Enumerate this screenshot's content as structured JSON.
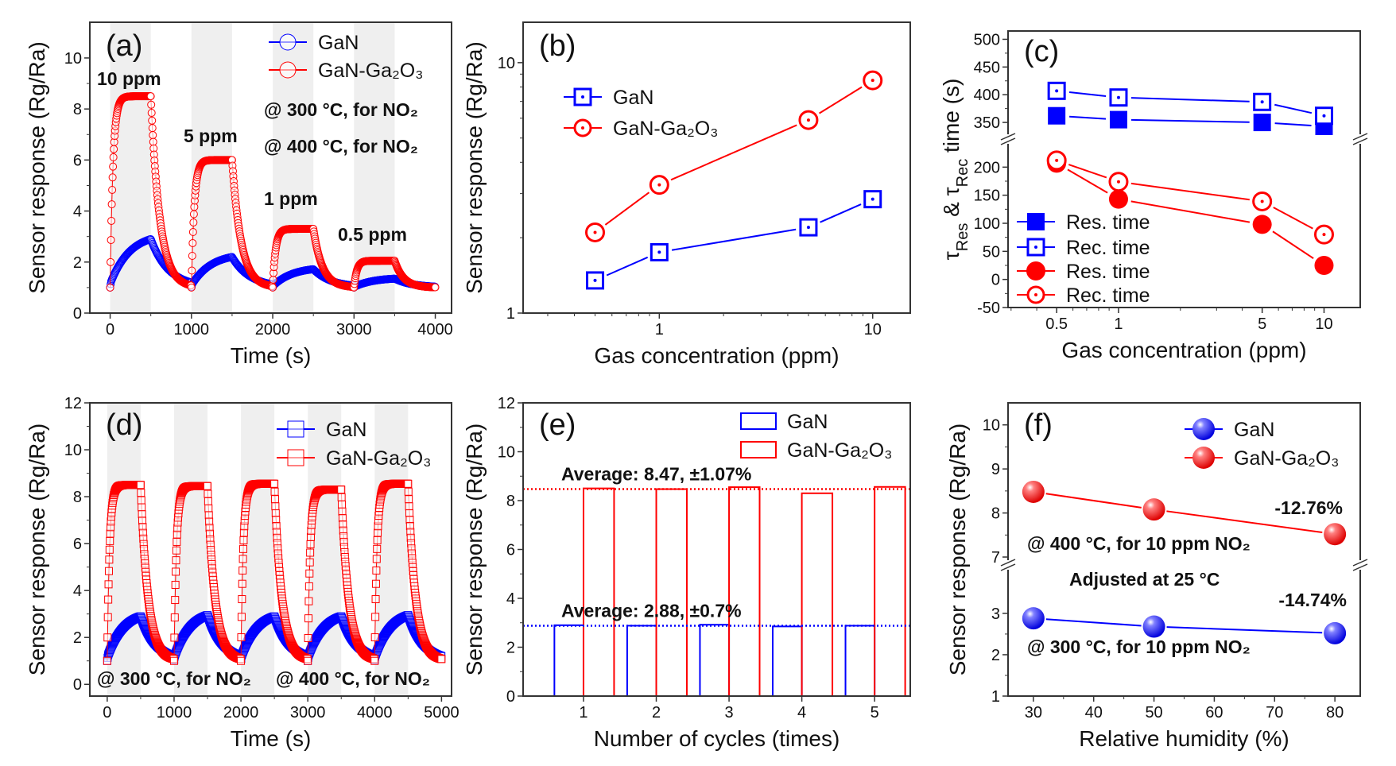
{
  "chart_data": [
    {
      "panel_label": "(a)",
      "type": "line",
      "xlabel": "Time (s)",
      "ylabel": "Sensor response (Rg/Ra)",
      "xlim": [
        -250,
        4200
      ],
      "ylim": [
        0,
        11.4
      ],
      "xticks": [
        0,
        1000,
        2000,
        3000,
        4000
      ],
      "yticks": [
        0,
        2,
        4,
        6,
        8,
        10
      ],
      "exposure_windows": [
        [
          0,
          500
        ],
        [
          1000,
          1500
        ],
        [
          2000,
          2500
        ],
        [
          3000,
          3500
        ]
      ],
      "baseline": 1,
      "series": [
        {
          "name": "GaN",
          "color": "#0000ff",
          "marker": "open-circle",
          "peaks": [
            2.9,
            2.2,
            1.72,
            1.35
          ]
        },
        {
          "name": "GaN-Ga₂O₃",
          "color": "#ff0000",
          "marker": "open-circle",
          "peaks": [
            8.5,
            6.0,
            3.3,
            2.05
          ]
        }
      ],
      "concentration_labels": [
        "10 ppm",
        "5 ppm",
        "1 ppm",
        "0.5 ppm"
      ],
      "annotations": [
        "@ 300 °C, for NO₂",
        "@ 400 °C, for NO₂"
      ],
      "legend": "top-right",
      "grid": false
    },
    {
      "panel_label": "(b)",
      "type": "line",
      "xlabel": "Gas concentration (ppm)",
      "ylabel": "Sensor response (Rg/Ra)",
      "xscale": "log",
      "yscale": "log",
      "xlim": [
        0.23,
        15
      ],
      "ylim": [
        1,
        14.5
      ],
      "xticks": [
        1,
        10
      ],
      "yticks": [
        1,
        10
      ],
      "x": [
        0.5,
        1,
        5,
        10
      ],
      "series": [
        {
          "name": "GaN",
          "color": "#0000ff",
          "marker": "open-square-dot",
          "values": [
            1.35,
            1.75,
            2.2,
            2.85
          ]
        },
        {
          "name": "GaN-Ga₂O₃",
          "color": "#ff0000",
          "marker": "open-circle-dot",
          "values": [
            2.1,
            3.25,
            5.9,
            8.5
          ]
        }
      ],
      "legend": "top-left",
      "grid": false
    },
    {
      "panel_label": "(c)",
      "type": "line",
      "xlabel": "Gas concentration (ppm)",
      "ylabel_parts": [
        "τ",
        "Res",
        " & τ",
        "Rec",
        " time (s)"
      ],
      "xscale": "log",
      "xlim": [
        0.29,
        15
      ],
      "broken_y": true,
      "ylim_lower": [
        -50,
        250
      ],
      "ylim_upper": [
        320,
        515
      ],
      "xticks": [
        0.5,
        1,
        5,
        10
      ],
      "yticks_lower": [
        -50,
        0,
        50,
        100,
        150,
        200
      ],
      "yticks_upper": [
        350,
        400,
        450,
        500
      ],
      "x": [
        0.5,
        1,
        5,
        10
      ],
      "series": [
        {
          "name": "Res. time",
          "color": "#0000ff",
          "marker": "filled-square",
          "values": [
            362,
            355,
            350,
            343
          ]
        },
        {
          "name": "Rec. time",
          "color": "#0000ff",
          "marker": "open-square-dot",
          "values": [
            407,
            395,
            387,
            362
          ]
        },
        {
          "name": "Res. time",
          "color": "#ff0000",
          "marker": "filled-circle",
          "values": [
            207,
            143,
            98,
            25
          ]
        },
        {
          "name": "Rec. time",
          "color": "#ff0000",
          "marker": "open-circle-dot",
          "values": [
            212,
            174,
            139,
            80
          ]
        }
      ],
      "legend": "bottom-left",
      "grid": false
    },
    {
      "panel_label": "(d)",
      "type": "line",
      "xlabel": "Time (s)",
      "ylabel": "Sensor response (Rg/Ra)",
      "xlim": [
        -260,
        5150
      ],
      "ylim": [
        -0.5,
        12
      ],
      "xticks": [
        0,
        1000,
        2000,
        3000,
        4000,
        5000
      ],
      "yticks": [
        0,
        2,
        4,
        6,
        8,
        10,
        12
      ],
      "exposure_windows": [
        [
          0,
          500
        ],
        [
          1000,
          1500
        ],
        [
          2000,
          2500
        ],
        [
          3000,
          3500
        ],
        [
          4000,
          4500
        ]
      ],
      "baseline": 1,
      "series": [
        {
          "name": "GaN",
          "color": "#0000ff",
          "marker": "open-square",
          "peaks": [
            2.9,
            2.95,
            2.9,
            2.9,
            2.95
          ]
        },
        {
          "name": "GaN-Ga₂O₃",
          "color": "#ff0000",
          "marker": "open-square",
          "peaks": [
            8.5,
            8.45,
            8.55,
            8.3,
            8.55
          ]
        }
      ],
      "annotations": [
        "@ 300 °C, for NO₂",
        "@ 400 °C, for NO₂"
      ],
      "legend": "top-right",
      "grid": false
    },
    {
      "panel_label": "(e)",
      "type": "bar",
      "xlabel": "Number of cycles (times)",
      "ylabel": "Sensor response (Rg/Ra)",
      "xlim": [
        0.17,
        5.49
      ],
      "ylim": [
        0,
        12
      ],
      "categories": [
        1,
        2,
        3,
        4,
        5
      ],
      "xticks": [
        1,
        2,
        3,
        4,
        5
      ],
      "yticks": [
        0,
        2,
        4,
        6,
        8,
        10,
        12
      ],
      "series": [
        {
          "name": "GaN",
          "color": "#0000ff",
          "values": [
            2.9,
            2.88,
            2.92,
            2.85,
            2.88
          ]
        },
        {
          "name": "GaN-Ga₂O₃",
          "color": "#ff0000",
          "values": [
            8.5,
            8.47,
            8.55,
            8.3,
            8.56
          ]
        }
      ],
      "averages": [
        {
          "text": "Average: 8.47, ±1.07%",
          "value": 8.47,
          "color": "#ff0000"
        },
        {
          "text": "Average: 2.88, ±0.7%",
          "value": 2.88,
          "color": "#0000ff"
        }
      ],
      "legend": "top-right",
      "grid": false
    },
    {
      "panel_label": "(f)",
      "type": "line",
      "xlabel": "Relative humidity (%)",
      "ylabel": "Sensor response (Rg/Ra)",
      "xlim": [
        25.8,
        84.2
      ],
      "broken_y": true,
      "ylim_lower": [
        1,
        4.17
      ],
      "ylim_upper": [
        6.82,
        10.5
      ],
      "xticks": [
        30,
        40,
        50,
        60,
        70,
        80
      ],
      "yticks_lower": [
        1,
        2,
        3
      ],
      "yticks_upper": [
        7,
        8,
        9,
        10
      ],
      "x": [
        30,
        50,
        80
      ],
      "series": [
        {
          "name": "GaN",
          "color": "#0000ff",
          "marker": "ball",
          "values": [
            2.88,
            2.68,
            2.52
          ]
        },
        {
          "name": "GaN-Ga₂O₃",
          "color": "#ff0000",
          "marker": "ball",
          "values": [
            8.48,
            8.08,
            7.52
          ]
        }
      ],
      "annotations": [
        "-12.76%",
        "@ 400 °C, for 10 ppm NO₂",
        "Adjusted at 25 °C",
        "-14.74%",
        "@ 300 °C, for 10 ppm NO₂"
      ],
      "legend": "top-right",
      "grid": false
    }
  ]
}
